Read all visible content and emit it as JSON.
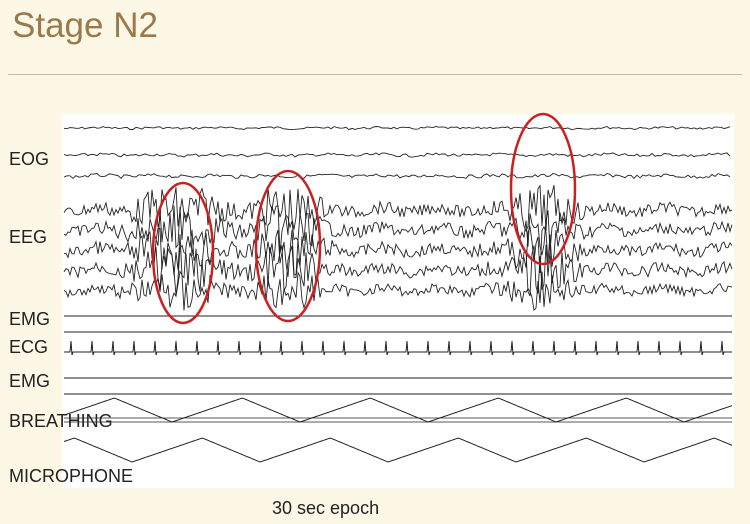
{
  "title": "Stage N2",
  "caption": "30 sec epoch",
  "channels": {
    "eog": "EOG",
    "eeg": "EEG",
    "emg_top": "EMG",
    "ecg": "ECG",
    "emg_bottom": "EMG",
    "breathing": "BREATHING",
    "microphone": "MICROPHONE"
  },
  "colors": {
    "background": "#fdf8e6",
    "title": "#9a7a4a",
    "trace": "#222222",
    "highlight": "#cc2020"
  }
}
